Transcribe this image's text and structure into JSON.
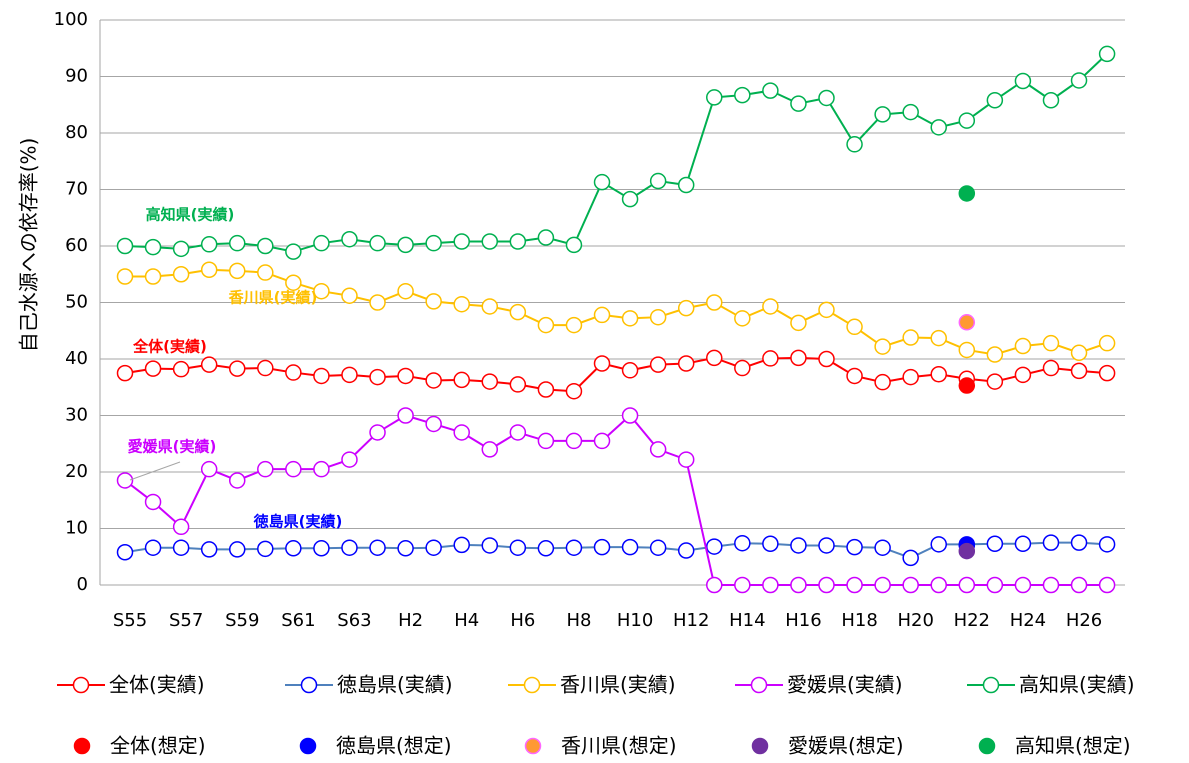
{
  "chart_data": {
    "type": "line",
    "y_label": "自己水源への依存率(%)",
    "categories": [
      "S55",
      null,
      "S57",
      null,
      "S59",
      null,
      "S61",
      null,
      "S63",
      null,
      "H2",
      null,
      "H4",
      null,
      "H6",
      null,
      "H8",
      null,
      "H10",
      null,
      "H12",
      null,
      "H14",
      null,
      "H16",
      null,
      "H18",
      null,
      "H20",
      null,
      "H22",
      null,
      "H24",
      null,
      "H26",
      null
    ],
    "ylim": [
      0,
      100
    ],
    "yticks": [
      0,
      10,
      20,
      30,
      40,
      50,
      60,
      70,
      80,
      90,
      100
    ],
    "grid": true,
    "series": [
      {
        "name": "全体(実績)",
        "color": "#ff0000",
        "values": [
          37.5,
          38.3,
          38.2,
          39,
          38.3,
          38.4,
          37.6,
          37,
          37.2,
          36.8,
          37,
          36.2,
          36.3,
          36,
          35.5,
          34.6,
          34.3,
          39.2,
          38,
          39,
          39.2,
          40.2,
          38.4,
          40.1,
          40.2,
          40,
          37,
          35.9,
          36.8,
          37.3,
          36.5,
          36,
          37.2,
          38.4,
          37.9,
          37.5
        ]
      },
      {
        "name": "徳島県(実績)",
        "color": "#0000ff",
        "line_color": "#4f81bd",
        "values": [
          5.8,
          6.6,
          6.6,
          6.3,
          6.3,
          6.4,
          6.5,
          6.5,
          6.6,
          6.6,
          6.5,
          6.6,
          7.1,
          7,
          6.6,
          6.5,
          6.6,
          6.7,
          6.7,
          6.6,
          6.1,
          6.8,
          7.4,
          7.3,
          7,
          7,
          6.7,
          6.6,
          4.8,
          7.2,
          7.2,
          7.3,
          7.3,
          7.5,
          7.5,
          7.2
        ]
      },
      {
        "name": "香川県(実績)",
        "color": "#ffc000",
        "values": [
          54.6,
          54.6,
          55,
          55.8,
          55.6,
          55.3,
          53.5,
          52,
          51.2,
          50,
          52,
          50.2,
          49.7,
          49.3,
          48.3,
          46,
          46,
          47.8,
          47.2,
          47.4,
          49,
          50,
          47.2,
          49.3,
          46.4,
          48.7,
          45.7,
          42.2,
          43.8,
          43.7,
          41.6,
          40.8,
          42.3,
          42.8,
          41.1,
          42.8
        ]
      },
      {
        "name": "愛媛県(実績)",
        "color": "#cc00ff",
        "values": [
          18.5,
          14.7,
          10.3,
          20.5,
          18.5,
          20.5,
          20.5,
          20.5,
          22.2,
          27,
          30,
          28.5,
          27,
          24,
          27,
          25.5,
          25.5,
          25.5,
          30,
          24,
          22.2,
          0,
          0,
          0,
          0,
          0,
          0,
          0,
          0,
          0,
          0,
          0,
          0,
          0,
          0,
          0
        ]
      },
      {
        "name": "高知県(実績)",
        "color": "#00b050",
        "values": [
          60,
          59.8,
          59.5,
          60.3,
          60.5,
          60,
          59,
          60.5,
          61.2,
          60.5,
          60.2,
          60.5,
          60.8,
          60.8,
          60.8,
          61.5,
          60.2,
          71.3,
          68.3,
          71.5,
          70.8,
          86.3,
          86.7,
          87.5,
          85.2,
          86.2,
          78,
          83.3,
          83.7,
          81,
          82.2,
          85.8,
          89.2,
          85.8,
          89.3,
          94
        ]
      }
    ],
    "point_series": [
      {
        "name": "全体(想定)",
        "color": "#ff0000",
        "values": [
          null,
          null,
          null,
          null,
          null,
          null,
          null,
          null,
          null,
          null,
          null,
          null,
          null,
          null,
          null,
          null,
          null,
          null,
          null,
          null,
          null,
          null,
          null,
          null,
          null,
          null,
          null,
          null,
          null,
          null,
          35.3,
          null,
          null,
          null,
          null,
          null
        ]
      },
      {
        "name": "徳島県(想定)",
        "color": "#0000ff",
        "values": [
          null,
          null,
          null,
          null,
          null,
          null,
          null,
          null,
          null,
          null,
          null,
          null,
          null,
          null,
          null,
          null,
          null,
          null,
          null,
          null,
          null,
          null,
          null,
          null,
          null,
          null,
          null,
          null,
          null,
          null,
          7,
          null,
          null,
          null,
          null,
          null
        ]
      },
      {
        "name": "香川県(想定)",
        "color": "#ff9933",
        "edge_color": "#ff66ff",
        "values": [
          null,
          null,
          null,
          null,
          null,
          null,
          null,
          null,
          null,
          null,
          null,
          null,
          null,
          null,
          null,
          null,
          null,
          null,
          null,
          null,
          null,
          null,
          null,
          null,
          null,
          null,
          null,
          null,
          null,
          null,
          46.5,
          null,
          null,
          null,
          null,
          null
        ]
      },
      {
        "name": "愛媛県(想定)",
        "color": "#7030a0",
        "values": [
          null,
          null,
          null,
          null,
          null,
          null,
          null,
          null,
          null,
          null,
          null,
          null,
          null,
          null,
          null,
          null,
          null,
          null,
          null,
          null,
          null,
          null,
          null,
          null,
          null,
          null,
          null,
          null,
          null,
          null,
          6,
          null,
          null,
          null,
          null,
          null
        ]
      },
      {
        "name": "高知県(想定)",
        "color": "#00b050",
        "values": [
          null,
          null,
          null,
          null,
          null,
          null,
          null,
          null,
          null,
          null,
          null,
          null,
          null,
          null,
          null,
          null,
          null,
          null,
          null,
          null,
          null,
          null,
          null,
          null,
          null,
          null,
          null,
          null,
          null,
          null,
          69.3,
          null,
          null,
          null,
          null,
          null
        ]
      }
    ],
    "annotations": [
      {
        "text": "高知県(実績)",
        "color": "#00b050"
      },
      {
        "text": "香川県(実績)",
        "color": "#ffc000"
      },
      {
        "text": "全体(実績)",
        "color": "#ff0000"
      },
      {
        "text": "愛媛県(実績)",
        "color": "#cc00ff"
      },
      {
        "text": "徳島県(実績)",
        "color": "#0000ff"
      }
    ]
  }
}
